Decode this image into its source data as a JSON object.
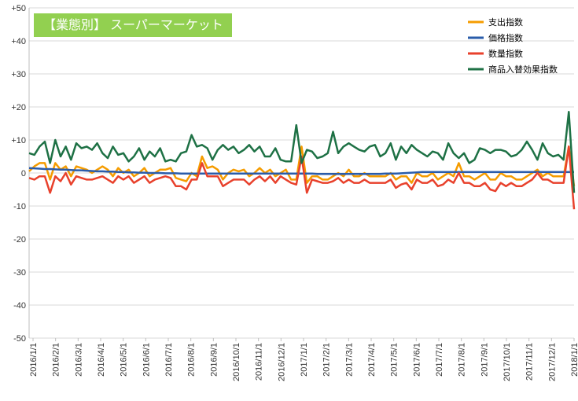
{
  "title": "【業態別】 スーパーマーケット",
  "chart_data": {
    "type": "line",
    "title": "【業態別】 スーパーマーケット",
    "xlabel": "",
    "ylabel": "",
    "ylim": [
      -50,
      50
    ],
    "y_tick_labels": [
      "+50",
      "+40",
      "+30",
      "+20",
      "+10",
      "0",
      "-10",
      "-20",
      "-30",
      "-40",
      "-50"
    ],
    "x_tick_labels": [
      "2016/1/1",
      "2016/2/1",
      "2016/3/1",
      "2016/4/1",
      "2016/5/1",
      "2016/6/1",
      "2016/7/1",
      "2016/8/1",
      "2016/9/1",
      "2016/10/1",
      "2016/11/1",
      "2016/12/1",
      "2017/1/1",
      "2017/2/1",
      "2017/3/1",
      "2017/4/1",
      "2017/5/1",
      "2017/6/1",
      "2017/7/1",
      "2017/8/1",
      "2017/9/1",
      "2017/10/1",
      "2017/11/1",
      "2017/12/1",
      "2018/1/1"
    ],
    "grid": true,
    "legend_position": "top-right",
    "x_points": 105,
    "series": [
      {
        "name": "支出指数",
        "color": "#f59c00",
        "values": [
          0.5,
          2,
          3,
          3,
          -2,
          3,
          1,
          2,
          -1,
          2,
          1.5,
          1,
          0,
          1,
          2,
          1,
          -1,
          1.5,
          0,
          1,
          -1,
          0,
          1.5,
          -1,
          0,
          1,
          1,
          1.5,
          -1.5,
          -2,
          -2.5,
          0,
          -1,
          5,
          1.5,
          2,
          1,
          -2,
          0,
          1,
          0.5,
          1,
          -1,
          0,
          1.5,
          0,
          1,
          -1,
          0,
          1,
          -2,
          -2,
          8,
          -3,
          -1,
          -1,
          -2,
          -2,
          -1,
          0,
          -1,
          1,
          -1,
          -1,
          0,
          -1,
          -1,
          -1,
          -1,
          0,
          -2,
          -1,
          -1,
          -3,
          0,
          -1,
          -1,
          0,
          -2,
          -1,
          0,
          -1,
          3,
          -1,
          -1,
          -2,
          -1,
          0,
          -2,
          -2,
          0,
          -1,
          -1,
          -2,
          -2,
          -1,
          0,
          1,
          -1,
          0,
          -1,
          -1,
          -1,
          8,
          -4
        ]
      },
      {
        "name": "価格指数",
        "color": "#2a5caa",
        "values": [
          1.5,
          1.4,
          1.3,
          1.2,
          1.2,
          1.1,
          1,
          1,
          0.9,
          0.8,
          0.8,
          0.7,
          0.6,
          0.5,
          0.5,
          0.4,
          0.4,
          0.3,
          0.3,
          0.2,
          0.2,
          0.1,
          0.1,
          0,
          0,
          0,
          -0.1,
          -0.1,
          -0.1,
          -0.2,
          -0.2,
          -0.2,
          -0.2,
          -0.2,
          -0.2,
          -0.2,
          -0.2,
          -0.2,
          -0.2,
          -0.2,
          -0.2,
          -0.2,
          -0.2,
          -0.2,
          -0.2,
          -0.2,
          -0.2,
          -0.2,
          -0.2,
          -0.2,
          -0.2,
          -0.2,
          -0.2,
          -0.2,
          -0.2,
          -0.3,
          -0.3,
          -0.3,
          -0.3,
          -0.3,
          -0.3,
          -0.3,
          -0.3,
          -0.3,
          -0.3,
          -0.3,
          -0.3,
          -0.3,
          -0.2,
          -0.2,
          -0.2,
          -0.1,
          0,
          0.1,
          0.2,
          0.3,
          0.3,
          0.3,
          0.3,
          0.3,
          0.3,
          0.3,
          0.3,
          0.3,
          0.3,
          0.3,
          0.3,
          0.3,
          0.3,
          0.3,
          0.3,
          0.3,
          0.3,
          0.3,
          0.3,
          0.3,
          0.3,
          0.3,
          0.3,
          0.3,
          0.3,
          0.3,
          0.3,
          0.3,
          0.3
        ]
      },
      {
        "name": "数量指数",
        "color": "#e8412c",
        "values": [
          -1.5,
          -2,
          -1,
          -1,
          -6,
          -1,
          -2.5,
          0,
          -3.5,
          -1,
          -1.5,
          -2,
          -2,
          -1.5,
          -1,
          -2,
          -3,
          -1,
          -2,
          -1,
          -3,
          -2,
          -1,
          -3,
          -2,
          -1.5,
          -1,
          -1.5,
          -4,
          -4,
          -5,
          -2,
          -2,
          3,
          -1,
          -1,
          -1,
          -4,
          -3,
          -2,
          -2,
          -2,
          -3.5,
          -2,
          -1,
          -2.5,
          -1,
          -3,
          -1,
          -2,
          -3,
          -3.5,
          5,
          -6,
          -2,
          -2.5,
          -3,
          -3,
          -2.5,
          -1.5,
          -3,
          -2,
          -3,
          -3,
          -2,
          -3,
          -3,
          -3,
          -3,
          -2,
          -4.5,
          -3.5,
          -3,
          -5,
          -2,
          -3,
          -3,
          -2,
          -4,
          -3.5,
          -2,
          -3,
          0,
          -3,
          -3,
          -4,
          -4,
          -3,
          -5,
          -5.5,
          -3,
          -4,
          -3,
          -4,
          -4,
          -3,
          -2,
          0,
          -2,
          -2,
          -3,
          -3,
          -3,
          8,
          -11
        ]
      },
      {
        "name": "商品入替効果指数",
        "color": "#1e7145",
        "values": [
          6,
          5.5,
          8,
          9.5,
          3,
          10,
          5,
          8,
          4,
          9,
          7.5,
          8,
          7,
          9,
          6,
          4.5,
          8,
          5.5,
          6,
          3.5,
          5,
          7.5,
          4,
          6.5,
          5,
          7.5,
          3.5,
          4,
          3.5,
          6,
          6.5,
          11.5,
          8,
          8.5,
          7.5,
          4,
          7,
          8.5,
          7,
          8,
          6,
          7,
          8.5,
          6.5,
          8,
          5,
          5,
          7.5,
          4,
          3.5,
          3.5,
          14.5,
          3,
          7,
          6.5,
          4.5,
          5,
          6,
          12.5,
          6,
          8,
          9,
          8,
          7,
          6.5,
          8,
          8.5,
          5,
          6,
          9,
          4,
          8,
          6,
          8.5,
          7,
          6,
          5,
          6.5,
          6,
          4,
          9,
          6,
          4.5,
          6,
          3,
          4,
          7.5,
          7,
          6,
          7,
          7,
          6.5,
          5,
          5.5,
          7,
          9.5,
          7,
          4,
          9,
          6,
          5,
          5.5,
          4,
          18.5,
          -6
        ]
      }
    ]
  }
}
